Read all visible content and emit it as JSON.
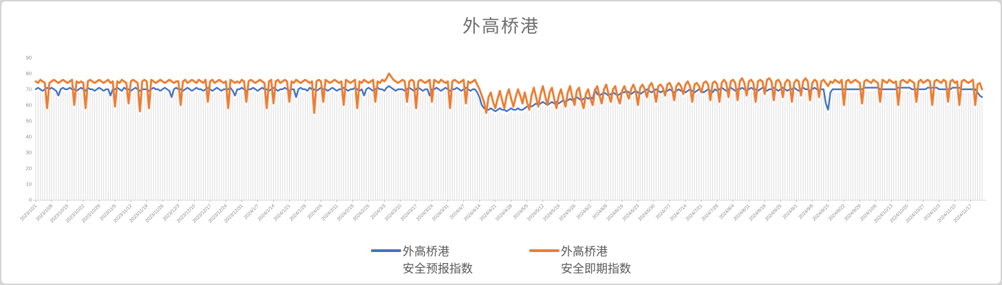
{
  "card": {
    "title": "外高桥港"
  },
  "legend": {
    "items": [
      {
        "line1": "外高桥港",
        "line2": "安全预报指数",
        "color": "#4472C4"
      },
      {
        "line1": "外高桥港",
        "line2": "安全即期指数",
        "color": "#ED7D31"
      }
    ]
  },
  "colors": {
    "forecast_blue": "#4472C4",
    "spot_orange": "#ED7D31",
    "gridline": "#dcdcdc",
    "axis_line": "#d9d9d9",
    "tick_text": "#8a8a8a",
    "title_text": "#6e6e6e",
    "legend_text": "#595959"
  },
  "chart_data": {
    "type": "line",
    "title": "外高桥港",
    "xlabel": "",
    "ylabel": "",
    "ylim": [
      0,
      90
    ],
    "y_ticks": [
      0,
      10,
      20,
      30,
      40,
      50,
      60,
      70,
      80,
      90
    ],
    "grid": "vertical daily drop-lines behind series",
    "legend_position": "bottom-center",
    "x_start": "2023/10/1",
    "x_tick_interval_days": 7,
    "x_tick_labels": [
      "2023/10/1",
      "2023/10/8",
      "2023/10/15",
      "2023/10/22",
      "2023/10/29",
      "2023/11/5",
      "2023/11/12",
      "2023/11/19",
      "2023/11/26",
      "2023/12/3",
      "2023/12/10",
      "2023/12/17",
      "2023/12/24",
      "2023/12/31",
      "2024/1/7",
      "2024/1/14",
      "2024/1/21",
      "2024/1/28",
      "2024/2/4",
      "2024/2/11",
      "2024/2/18",
      "2024/2/25",
      "2024/3/3",
      "2024/3/10",
      "2024/3/17",
      "2024/3/24",
      "2024/3/31",
      "2024/4/7",
      "2024/4/14",
      "2024/4/21",
      "2024/4/28",
      "2024/5/5",
      "2024/5/12",
      "2024/5/19",
      "2024/5/26",
      "2024/6/2",
      "2024/6/9",
      "2024/6/16",
      "2024/6/23",
      "2024/6/30",
      "2024/7/7",
      "2024/7/14",
      "2024/7/21",
      "2024/7/28",
      "2024/8/4",
      "2024/8/11",
      "2024/8/18",
      "2024/8/25",
      "2024/9/1",
      "2024/9/8",
      "2024/9/15",
      "2024/9/22",
      "2024/9/29",
      "2024/10/6",
      "2024/10/13",
      "2024/10/20",
      "2024/10/27",
      "2024/11/3",
      "2024/11/10",
      "2024/11/17"
    ],
    "series": [
      {
        "name": "外高桥港 安全预报指数",
        "color": "#4472C4",
        "values": [
          70,
          71,
          70,
          69,
          70,
          71,
          70,
          71,
          70,
          69,
          66,
          70,
          71,
          70,
          70,
          71,
          70,
          70,
          69,
          70,
          71,
          70,
          69,
          71,
          70,
          70,
          69,
          70,
          71,
          70,
          69,
          70,
          70,
          66,
          70,
          70,
          71,
          70,
          69,
          71,
          70,
          70,
          69,
          70,
          71,
          70,
          69,
          70,
          70,
          70,
          69,
          70,
          71,
          70,
          70,
          69,
          70,
          71,
          70,
          69,
          65,
          70,
          71,
          70,
          70,
          69,
          70,
          71,
          70,
          69,
          70,
          71,
          70,
          70,
          69,
          70,
          71,
          70,
          69,
          70,
          71,
          70,
          69,
          70,
          70,
          70,
          71,
          69,
          66,
          70,
          70,
          71,
          70,
          69,
          70,
          70,
          71,
          70,
          69,
          70,
          71,
          70,
          70,
          69,
          70,
          71,
          70,
          69,
          70,
          70,
          71,
          70,
          69,
          70,
          70,
          65,
          70,
          71,
          70,
          70,
          69,
          71,
          70,
          70,
          69,
          70,
          71,
          70,
          70,
          69,
          70,
          71,
          70,
          69,
          70,
          70,
          71,
          70,
          69,
          70,
          70,
          71,
          70,
          69,
          70,
          66,
          70,
          71,
          70,
          69,
          70,
          71,
          70,
          70,
          69,
          71,
          72,
          71,
          70,
          69,
          70,
          70,
          70,
          69,
          70,
          71,
          70,
          69,
          70,
          71,
          70,
          69,
          70,
          70,
          66,
          70,
          70,
          71,
          70,
          69,
          70,
          71,
          70,
          69,
          70,
          70,
          71,
          70,
          69,
          70,
          71,
          70,
          69,
          70,
          70,
          68,
          65,
          60,
          58,
          57,
          57,
          58,
          57,
          56,
          57,
          58,
          57,
          57,
          56,
          57,
          58,
          57,
          57,
          58,
          57,
          57,
          58,
          59,
          60,
          59,
          60,
          61,
          60,
          61,
          62,
          61,
          60,
          61,
          62,
          61,
          62,
          61,
          62,
          63,
          62,
          63,
          64,
          63,
          64,
          65,
          64,
          63,
          64,
          65,
          64,
          65,
          64,
          70,
          67,
          66,
          67,
          68,
          67,
          66,
          67,
          68,
          67,
          66,
          67,
          68,
          68,
          69,
          68,
          67,
          68,
          69,
          68,
          67,
          68,
          69,
          70,
          69,
          68,
          69,
          70,
          69,
          68,
          69,
          68,
          69,
          70,
          69,
          68,
          69,
          70,
          69,
          69,
          68,
          69,
          70,
          69,
          68,
          69,
          70,
          69,
          68,
          69,
          70,
          69,
          68,
          70,
          69,
          70,
          71,
          70,
          69,
          70,
          71,
          70,
          69,
          70,
          70,
          71,
          70,
          69,
          70,
          71,
          70,
          70,
          69,
          70,
          71,
          70,
          69,
          70,
          70,
          71,
          70,
          69,
          70,
          71,
          70,
          69,
          70,
          70,
          71,
          70,
          69,
          70,
          71,
          70,
          70,
          69,
          70,
          71,
          70,
          69,
          70,
          70,
          61,
          57,
          68,
          70,
          70,
          70,
          70,
          70,
          70,
          70,
          70,
          70,
          70,
          70,
          70,
          70,
          70,
          71,
          71,
          71,
          71,
          71,
          71,
          71,
          70,
          70,
          70,
          70,
          70,
          70,
          70,
          70,
          71,
          71,
          71,
          71,
          71,
          71,
          70,
          70,
          70,
          70,
          70,
          70,
          70,
          71,
          71,
          71,
          71,
          71,
          70,
          70,
          70,
          70,
          70,
          70,
          71,
          71,
          71,
          71,
          70,
          70,
          70,
          70,
          70,
          70,
          70,
          68,
          66,
          65
        ]
      },
      {
        "name": "外高桥港 安全即期指数",
        "color": "#ED7D31",
        "values": [
          75,
          74,
          76,
          75,
          74,
          58,
          74,
          75,
          76,
          75,
          74,
          75,
          76,
          75,
          74,
          75,
          76,
          60,
          75,
          74,
          75,
          74,
          58,
          75,
          76,
          75,
          74,
          75,
          76,
          75,
          74,
          75,
          76,
          74,
          75,
          59,
          75,
          74,
          76,
          75,
          74,
          61,
          75,
          76,
          75,
          74,
          56,
          75,
          76,
          75,
          58,
          76,
          75,
          74,
          75,
          76,
          75,
          74,
          75,
          76,
          75,
          74,
          75,
          75,
          60,
          75,
          76,
          74,
          75,
          76,
          75,
          74,
          76,
          75,
          74,
          76,
          62,
          75,
          76,
          74,
          75,
          76,
          75,
          74,
          75,
          58,
          76,
          75,
          74,
          75,
          74,
          76,
          75,
          62,
          75,
          76,
          75,
          74,
          75,
          76,
          75,
          74,
          58,
          75,
          76,
          61,
          75,
          76,
          74,
          75,
          76,
          75,
          62,
          75,
          74,
          76,
          75,
          74,
          75,
          76,
          75,
          74,
          75,
          55,
          75,
          76,
          75,
          62,
          76,
          75,
          74,
          75,
          76,
          75,
          74,
          75,
          60,
          76,
          75,
          74,
          75,
          76,
          58,
          75,
          74,
          76,
          75,
          74,
          75,
          76,
          62,
          75,
          74,
          76,
          75,
          77,
          80,
          78,
          76,
          75,
          74,
          75,
          76,
          75,
          62,
          75,
          76,
          75,
          58,
          75,
          76,
          75,
          74,
          75,
          76,
          62,
          76,
          75,
          74,
          76,
          75,
          74,
          75,
          58,
          75,
          76,
          75,
          74,
          75,
          76,
          61,
          75,
          74,
          75,
          76,
          73,
          70,
          66,
          62,
          55,
          65,
          68,
          62,
          58,
          64,
          69,
          63,
          58,
          66,
          70,
          64,
          59,
          65,
          70,
          66,
          61,
          68,
          62,
          57,
          66,
          71,
          65,
          59,
          67,
          72,
          66,
          60,
          68,
          71,
          64,
          58,
          66,
          70,
          64,
          59,
          68,
          72,
          65,
          60,
          69,
          71,
          63,
          58,
          67,
          70,
          64,
          60,
          69,
          72,
          66,
          61,
          70,
          73,
          67,
          62,
          70,
          72,
          65,
          61,
          69,
          72,
          68,
          64,
          70,
          73,
          69,
          60,
          71,
          73,
          70,
          65,
          72,
          74,
          70,
          62,
          72,
          73,
          71,
          66,
          73,
          74,
          71,
          63,
          72,
          74,
          72,
          67,
          73,
          75,
          72,
          62,
          73,
          74,
          72,
          68,
          74,
          75,
          73,
          63,
          74,
          75,
          73,
          62,
          74,
          76,
          74,
          65,
          75,
          76,
          74,
          63,
          75,
          77,
          74,
          66,
          75,
          76,
          74,
          62,
          75,
          76,
          75,
          67,
          76,
          77,
          75,
          63,
          75,
          76,
          74,
          65,
          74,
          76,
          75,
          62,
          74,
          76,
          75,
          66,
          75,
          77,
          75,
          63,
          74,
          76,
          75,
          65,
          75,
          76,
          74,
          72,
          75,
          74,
          76,
          75,
          74,
          76,
          60,
          75,
          76,
          74,
          75,
          76,
          75,
          74,
          61,
          75,
          76,
          75,
          74,
          76,
          75,
          74,
          62,
          76,
          75,
          74,
          76,
          75,
          74,
          75,
          60,
          75,
          76,
          75,
          74,
          76,
          75,
          74,
          62,
          75,
          76,
          74,
          75,
          76,
          75,
          60,
          75,
          76,
          75,
          74,
          76,
          75,
          62,
          75,
          76,
          74,
          75,
          60,
          75,
          76,
          75,
          74,
          75,
          76,
          60,
          73,
          74,
          70
        ]
      }
    ]
  }
}
